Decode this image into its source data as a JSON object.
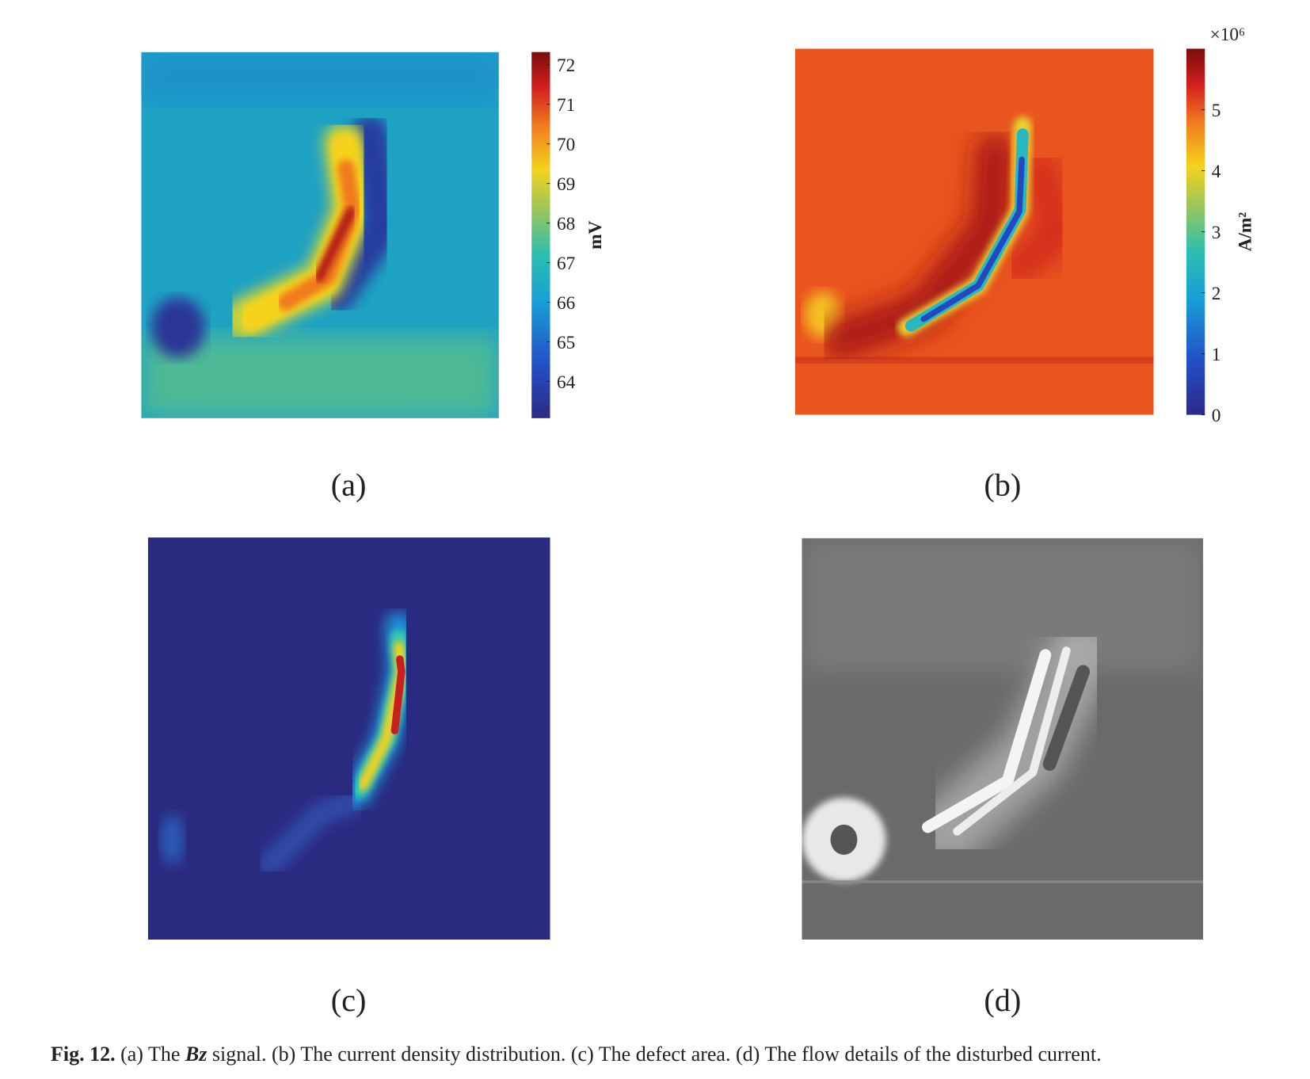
{
  "figure": {
    "panels": [
      {
        "label": "(a)",
        "colorbar": {
          "unit": "mV",
          "lim": [
            63.07,
            72.32
          ],
          "ticks": [
            64,
            65,
            66,
            67,
            68,
            69,
            70,
            71,
            72
          ]
        }
      },
      {
        "label": "(b)",
        "colorbar": {
          "unit": "A/m²",
          "multiplier": "×10⁶",
          "lim": [
            0,
            6.0
          ],
          "ticks": [
            0,
            1,
            2,
            3,
            4,
            5
          ]
        }
      },
      {
        "label": "(c)"
      },
      {
        "label": "(d)"
      }
    ],
    "caption": {
      "label": "Fig. 12.",
      "before": "(a) The",
      "emphasis": "Bz",
      "after": "signal. (b) The current density distribution. (c) The defect area. (d) The flow details of the disturbed current."
    }
  }
}
